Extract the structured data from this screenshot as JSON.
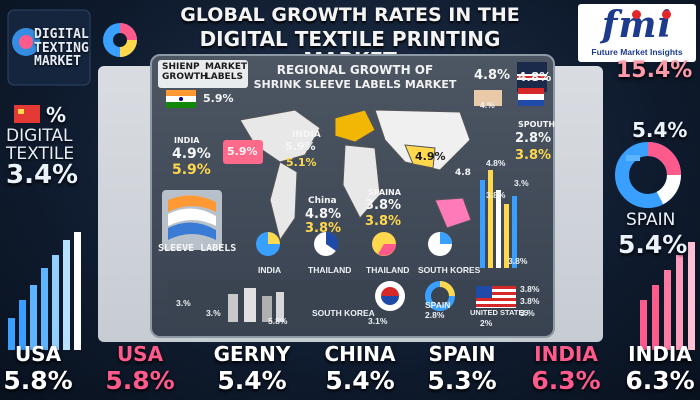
{
  "header": {
    "title_line1": "GLOBAL GROWTH RATES IN THE",
    "title_line2": "DIGITAL TEXTILE PRINTING MARKET"
  },
  "logo": {
    "word": "fmi",
    "subtitle": "Future Market Insights"
  },
  "left": {
    "card_title": [
      "DIGITAL",
      "TEXTING",
      "MARKET"
    ],
    "big_label": [
      "DIGITAL",
      "TEXTILE"
    ],
    "big_value": "3.4%",
    "pct_fragment": "%"
  },
  "right": {
    "top_value": "15.4%",
    "mid_value": "5.4%",
    "spain_label": "SPAIN",
    "spain_value": "5.4%"
  },
  "panel": {
    "title_line1": "REGIONAL GROWTH OF",
    "title_line2": "SHRINK SLEEVE LABELS MARKET",
    "tag_left": [
      "SHIENP",
      "GROWTH"
    ],
    "tag_right": [
      "MARKET",
      "LABELS"
    ],
    "flag_value": "5.9%",
    "sleeve_label": "SLEEVE LABELS",
    "india_label": "INDIA",
    "india_values": [
      "4.9%",
      "5.9%"
    ],
    "map_values": [
      "5.9%",
      "5.9%",
      "5.1%",
      "4.9%",
      "4.8"
    ],
    "region_india2": "INDIA",
    "china_label": "China",
    "china_values": [
      "4.8%",
      "3.8%"
    ],
    "spain_label": "SPAINA",
    "spain_values": [
      "3.8%",
      "3.8%"
    ],
    "south_label": "SPOUTH",
    "south_values": [
      "2.8%",
      "3.8%"
    ],
    "top_right_values": [
      "4.8%",
      "4.8%"
    ],
    "small_pcts": [
      "3.%",
      "3.8%",
      "4.%",
      "4.8%",
      "3.8%"
    ],
    "pie_labels": [
      "INDIA",
      "THAILAND",
      "THAILAND",
      "SOUTH KORES"
    ],
    "bottom_values": [
      "3.%",
      "3.%",
      "5.8%",
      "3.1%",
      "2.8%",
      "3.8%",
      "3.8%",
      "2%",
      "3.%"
    ],
    "south_korea": "SOUTH KOREA",
    "spain_small": "SPAIN",
    "united_states": "UNITED STATES"
  },
  "chart_data": {
    "type": "bar",
    "categories": [
      "USA",
      "USA",
      "GERNY",
      "CHINA",
      "SPAIN",
      "INDIA",
      "INDIA"
    ],
    "values": [
      5.8,
      5.8,
      5.4,
      5.4,
      5.3,
      6.3,
      6.3
    ],
    "labels": [
      "5.8%",
      "5.8%",
      "5.4%",
      "5.4%",
      "5.3%",
      "6.3%",
      "6.3%"
    ],
    "colors": [
      "#ffffff",
      "#ff5a8c",
      "#ffffff",
      "#ffffff",
      "#ffffff",
      "#ff5a8c",
      "#ffffff"
    ]
  },
  "colors": {
    "accent_pink": "#ff5a8c",
    "accent_blue": "#3aa0ff",
    "accent_yellow": "#ffd84d",
    "panel_gray": "#4d5663"
  }
}
